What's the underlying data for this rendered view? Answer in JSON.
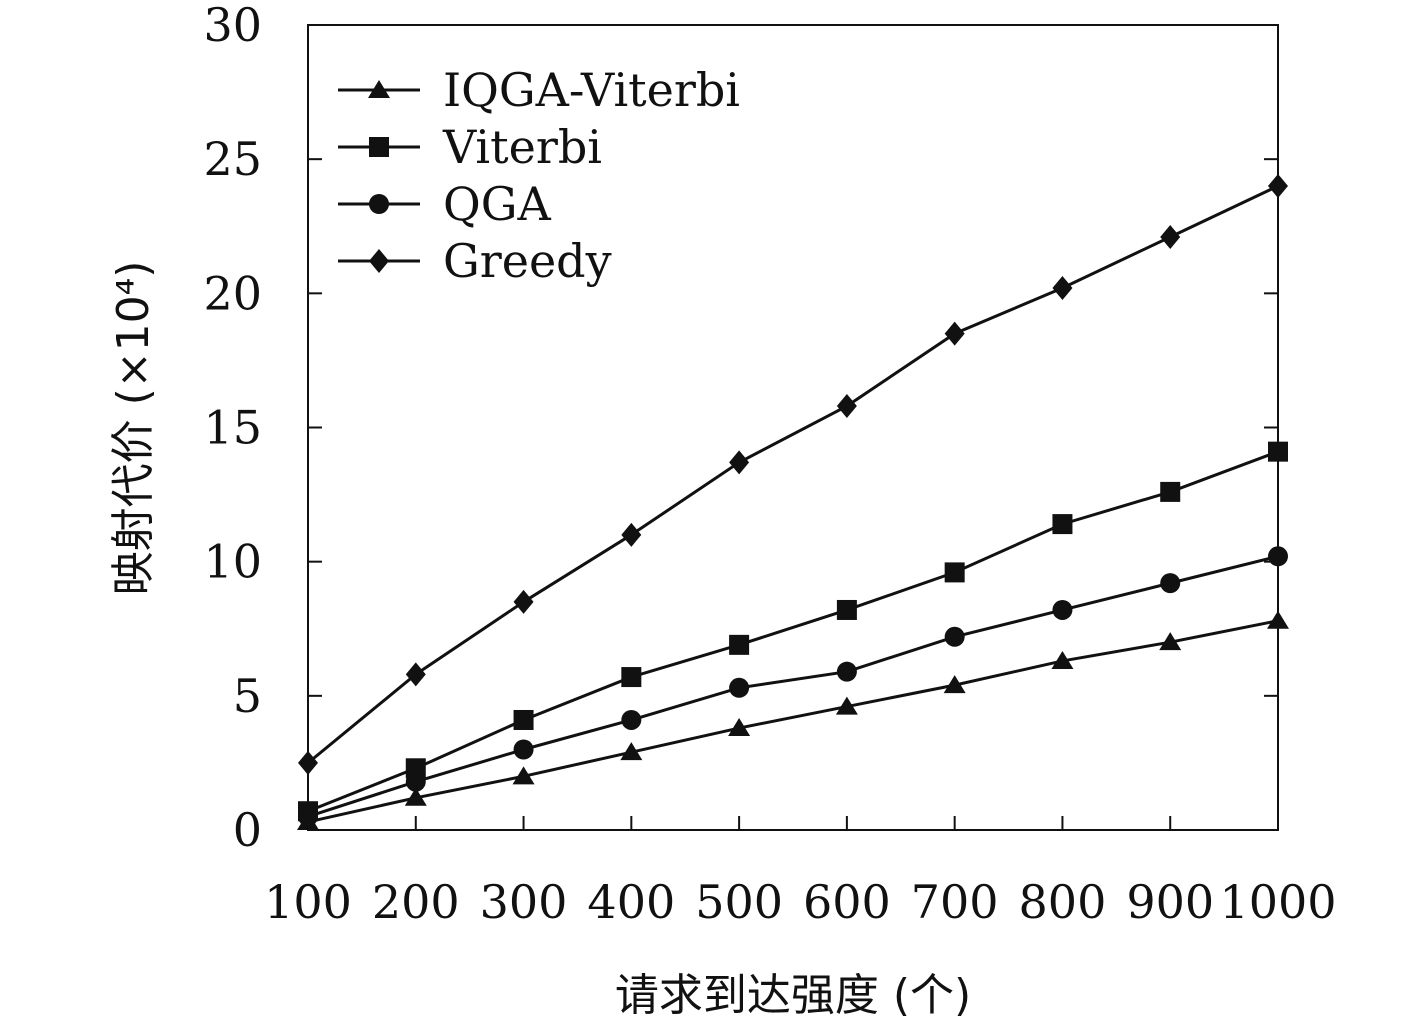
{
  "chart_data": {
    "type": "line",
    "title": "",
    "xlabel": "请求到达强度 (个)",
    "ylabel": "映射代价 (×10⁴)",
    "categories": [
      100,
      200,
      300,
      400,
      500,
      600,
      700,
      800,
      900,
      1000
    ],
    "xtick_labels": [
      "100",
      "200",
      "300",
      "400",
      "500",
      "600",
      "700",
      "800",
      "900",
      "1000"
    ],
    "ylim": [
      0,
      30
    ],
    "yticks": [
      0,
      5,
      10,
      15,
      20,
      25,
      30
    ],
    "ytick_labels": [
      "0",
      "5",
      "10",
      "15",
      "20",
      "25",
      "30"
    ],
    "legend_position": "top-left",
    "grid": false,
    "series": [
      {
        "name": "IQGA-Viterbi",
        "marker": "triangle",
        "values": [
          0.3,
          1.2,
          2.0,
          2.9,
          3.8,
          4.6,
          5.4,
          6.3,
          7.0,
          7.8
        ]
      },
      {
        "name": "Viterbi",
        "marker": "square",
        "values": [
          0.7,
          2.3,
          4.1,
          5.7,
          6.9,
          8.2,
          9.6,
          11.4,
          12.6,
          14.1
        ]
      },
      {
        "name": "QGA",
        "marker": "circle",
        "values": [
          0.5,
          1.8,
          3.0,
          4.1,
          5.3,
          5.9,
          7.2,
          8.2,
          9.2,
          10.2
        ]
      },
      {
        "name": "Greedy",
        "marker": "diamond",
        "values": [
          2.5,
          5.8,
          8.5,
          11.0,
          13.7,
          15.8,
          18.5,
          20.2,
          22.1,
          24.0
        ]
      }
    ]
  }
}
